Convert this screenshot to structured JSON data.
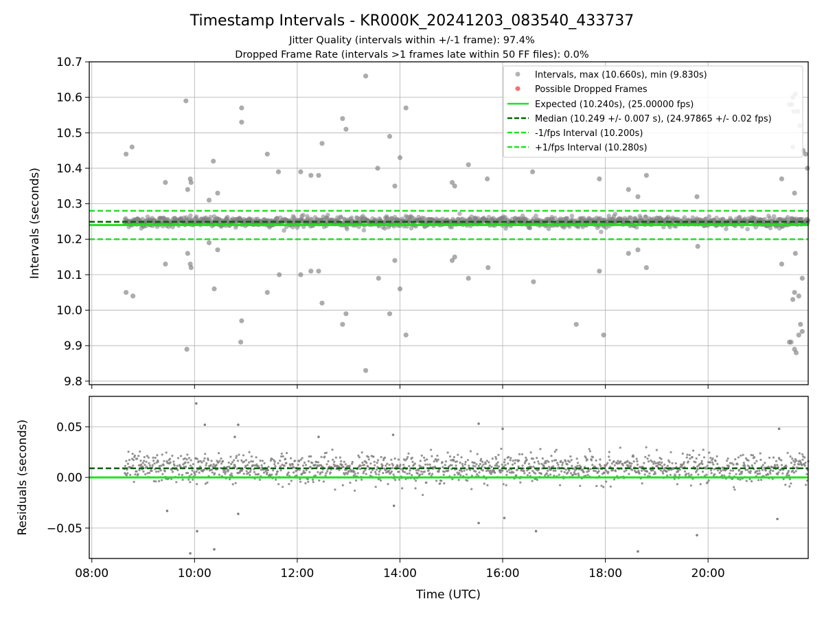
{
  "figure": {
    "title": "Timestamp Intervals - KR000K_20241203_083540_433737",
    "subtitle_1": "Jitter Quality (intervals within +/-1 frame): 97.4%",
    "subtitle_2": "Dropped Frame Rate (intervals >1 frames late within 50 FF files): 0.0%"
  },
  "colors": {
    "points": "#808080",
    "dropped": "#e8454a",
    "expected": "#1fe01f",
    "median": "#006400",
    "interval": "#20e020",
    "grid": "#b0b0b0"
  },
  "chart_data": [
    {
      "type": "scatter",
      "ylabel": "Intervals (seconds)",
      "xlim": [
        "07:57",
        "21:57"
      ],
      "ylim": [
        9.79,
        10.7
      ],
      "yticks": [
        "9.8",
        "9.9",
        "10.0",
        "10.1",
        "10.2",
        "10.3",
        "10.4",
        "10.5",
        "10.6",
        "10.7"
      ],
      "grid": true,
      "legend_position": "top-right",
      "legend": [
        {
          "label": "Intervals, max (10.660s), min (9.830s)"
        },
        {
          "label": "Possible Dropped Frames"
        },
        {
          "label": "Expected (10.240s), (25.00000 fps)"
        },
        {
          "label": "Median (10.249 +/- 0.007 s), (24.97865 +/- 0.02 fps)"
        },
        {
          "label": "-1/fps Interval (10.200s)"
        },
        {
          "label": "+1/fps Interval (10.280s)"
        }
      ],
      "lines": {
        "expected": 10.24,
        "median": 10.249,
        "minus_interval": 10.2,
        "plus_interval": 10.28
      },
      "band": {
        "center": 10.249,
        "spread": 0.007,
        "x_start": "08:38",
        "x_end": "21:57"
      },
      "outliers": [
        {
          "x": "08:40",
          "y": 10.44
        },
        {
          "x": "08:47",
          "y": 10.46
        },
        {
          "x": "08:40",
          "y": 10.05
        },
        {
          "x": "08:48",
          "y": 10.04
        },
        {
          "x": "09:26",
          "y": 10.36
        },
        {
          "x": "09:26",
          "y": 10.13
        },
        {
          "x": "09:50",
          "y": 10.59
        },
        {
          "x": "09:52",
          "y": 10.34
        },
        {
          "x": "09:55",
          "y": 10.37
        },
        {
          "x": "09:56",
          "y": 10.36
        },
        {
          "x": "09:52",
          "y": 10.16
        },
        {
          "x": "09:55",
          "y": 10.13
        },
        {
          "x": "09:56",
          "y": 10.12
        },
        {
          "x": "09:51",
          "y": 9.89
        },
        {
          "x": "10:17",
          "y": 10.31
        },
        {
          "x": "10:22",
          "y": 10.42
        },
        {
          "x": "10:27",
          "y": 10.33
        },
        {
          "x": "10:17",
          "y": 10.19
        },
        {
          "x": "10:27",
          "y": 10.17
        },
        {
          "x": "10:23",
          "y": 10.06
        },
        {
          "x": "10:55",
          "y": 10.57
        },
        {
          "x": "10:55",
          "y": 10.53
        },
        {
          "x": "10:55",
          "y": 9.97
        },
        {
          "x": "10:54",
          "y": 9.91
        },
        {
          "x": "11:25",
          "y": 10.44
        },
        {
          "x": "11:25",
          "y": 10.05
        },
        {
          "x": "11:38",
          "y": 10.39
        },
        {
          "x": "11:39",
          "y": 10.1
        },
        {
          "x": "12:04",
          "y": 10.39
        },
        {
          "x": "12:04",
          "y": 10.1
        },
        {
          "x": "12:16",
          "y": 10.38
        },
        {
          "x": "12:25",
          "y": 10.38
        },
        {
          "x": "12:16",
          "y": 10.11
        },
        {
          "x": "12:25",
          "y": 10.11
        },
        {
          "x": "12:29",
          "y": 10.47
        },
        {
          "x": "12:29",
          "y": 10.02
        },
        {
          "x": "12:53",
          "y": 10.54
        },
        {
          "x": "12:57",
          "y": 10.51
        },
        {
          "x": "12:53",
          "y": 9.96
        },
        {
          "x": "12:57",
          "y": 9.99
        },
        {
          "x": "13:20",
          "y": 10.66
        },
        {
          "x": "13:20",
          "y": 9.83
        },
        {
          "x": "13:34",
          "y": 10.4
        },
        {
          "x": "13:35",
          "y": 10.09
        },
        {
          "x": "13:48",
          "y": 10.49
        },
        {
          "x": "13:48",
          "y": 9.99
        },
        {
          "x": "13:54",
          "y": 10.35
        },
        {
          "x": "13:54",
          "y": 10.14
        },
        {
          "x": "14:00",
          "y": 10.43
        },
        {
          "x": "14:00",
          "y": 10.06
        },
        {
          "x": "14:07",
          "y": 10.57
        },
        {
          "x": "14:07",
          "y": 9.93
        },
        {
          "x": "15:01",
          "y": 10.36
        },
        {
          "x": "15:04",
          "y": 10.35
        },
        {
          "x": "15:01",
          "y": 10.14
        },
        {
          "x": "15:04",
          "y": 10.15
        },
        {
          "x": "15:20",
          "y": 10.41
        },
        {
          "x": "15:20",
          "y": 10.09
        },
        {
          "x": "15:42",
          "y": 10.37
        },
        {
          "x": "15:43",
          "y": 10.12
        },
        {
          "x": "16:35",
          "y": 10.39
        },
        {
          "x": "16:36",
          "y": 10.08
        },
        {
          "x": "17:26",
          "y": 9.96
        },
        {
          "x": "17:53",
          "y": 10.37
        },
        {
          "x": "17:53",
          "y": 10.11
        },
        {
          "x": "17:58",
          "y": 9.93
        },
        {
          "x": "18:27",
          "y": 10.34
        },
        {
          "x": "18:38",
          "y": 10.32
        },
        {
          "x": "18:27",
          "y": 10.16
        },
        {
          "x": "18:38",
          "y": 10.17
        },
        {
          "x": "18:48",
          "y": 10.38
        },
        {
          "x": "18:48",
          "y": 10.12
        },
        {
          "x": "19:47",
          "y": 10.32
        },
        {
          "x": "19:48",
          "y": 10.18
        },
        {
          "x": "21:26",
          "y": 10.37
        },
        {
          "x": "21:26",
          "y": 10.13
        },
        {
          "x": "21:35",
          "y": 10.58
        },
        {
          "x": "21:38",
          "y": 10.58
        },
        {
          "x": "21:39",
          "y": 10.6
        },
        {
          "x": "21:40",
          "y": 10.56
        },
        {
          "x": "21:42",
          "y": 10.61
        },
        {
          "x": "21:45",
          "y": 10.56
        },
        {
          "x": "21:47",
          "y": 10.52
        },
        {
          "x": "21:51",
          "y": 10.45
        },
        {
          "x": "21:54",
          "y": 10.44
        },
        {
          "x": "21:56",
          "y": 10.4
        },
        {
          "x": "21:39",
          "y": 10.46
        },
        {
          "x": "21:41",
          "y": 10.33
        },
        {
          "x": "21:42",
          "y": 10.16
        },
        {
          "x": "21:39",
          "y": 10.03
        },
        {
          "x": "21:41",
          "y": 10.05
        },
        {
          "x": "21:46",
          "y": 10.04
        },
        {
          "x": "21:50",
          "y": 10.09
        },
        {
          "x": "21:35",
          "y": 9.91
        },
        {
          "x": "21:37",
          "y": 9.91
        },
        {
          "x": "21:41",
          "y": 9.89
        },
        {
          "x": "21:43",
          "y": 9.88
        },
        {
          "x": "21:46",
          "y": 9.93
        },
        {
          "x": "21:48",
          "y": 9.96
        },
        {
          "x": "21:50",
          "y": 9.94
        }
      ]
    },
    {
      "type": "scatter",
      "xlabel": "Time (UTC)",
      "ylabel": "Residuals (seconds)",
      "xlim": [
        "07:57",
        "21:57"
      ],
      "ylim": [
        -0.08,
        0.08
      ],
      "xticks": [
        "08:00",
        "10:00",
        "12:00",
        "14:00",
        "16:00",
        "18:00",
        "20:00"
      ],
      "yticks": [
        "−0.05",
        "0.00",
        "0.05"
      ],
      "grid": true,
      "lines": {
        "expected": 0.0,
        "median": 0.009
      },
      "band": {
        "center": 0.009,
        "spread": 0.007,
        "x_start": "08:38",
        "x_end": "21:57"
      },
      "outliers": [
        {
          "x": "09:55",
          "y": -0.075
        },
        {
          "x": "10:02",
          "y": 0.073
        },
        {
          "x": "10:03",
          "y": -0.053
        },
        {
          "x": "10:12",
          "y": 0.052
        },
        {
          "x": "10:23",
          "y": -0.071
        },
        {
          "x": "10:47",
          "y": 0.04
        },
        {
          "x": "10:51",
          "y": 0.052
        },
        {
          "x": "10:51",
          "y": -0.036
        },
        {
          "x": "09:28",
          "y": -0.033
        },
        {
          "x": "12:25",
          "y": 0.04
        },
        {
          "x": "13:52",
          "y": 0.042
        },
        {
          "x": "13:53",
          "y": -0.028
        },
        {
          "x": "15:32",
          "y": 0.053
        },
        {
          "x": "15:32",
          "y": -0.045
        },
        {
          "x": "16:00",
          "y": 0.048
        },
        {
          "x": "16:02",
          "y": -0.04
        },
        {
          "x": "16:39",
          "y": -0.053
        },
        {
          "x": "18:38",
          "y": -0.073
        },
        {
          "x": "19:47",
          "y": -0.057
        },
        {
          "x": "21:21",
          "y": -0.041
        },
        {
          "x": "21:23",
          "y": 0.048
        }
      ]
    }
  ]
}
